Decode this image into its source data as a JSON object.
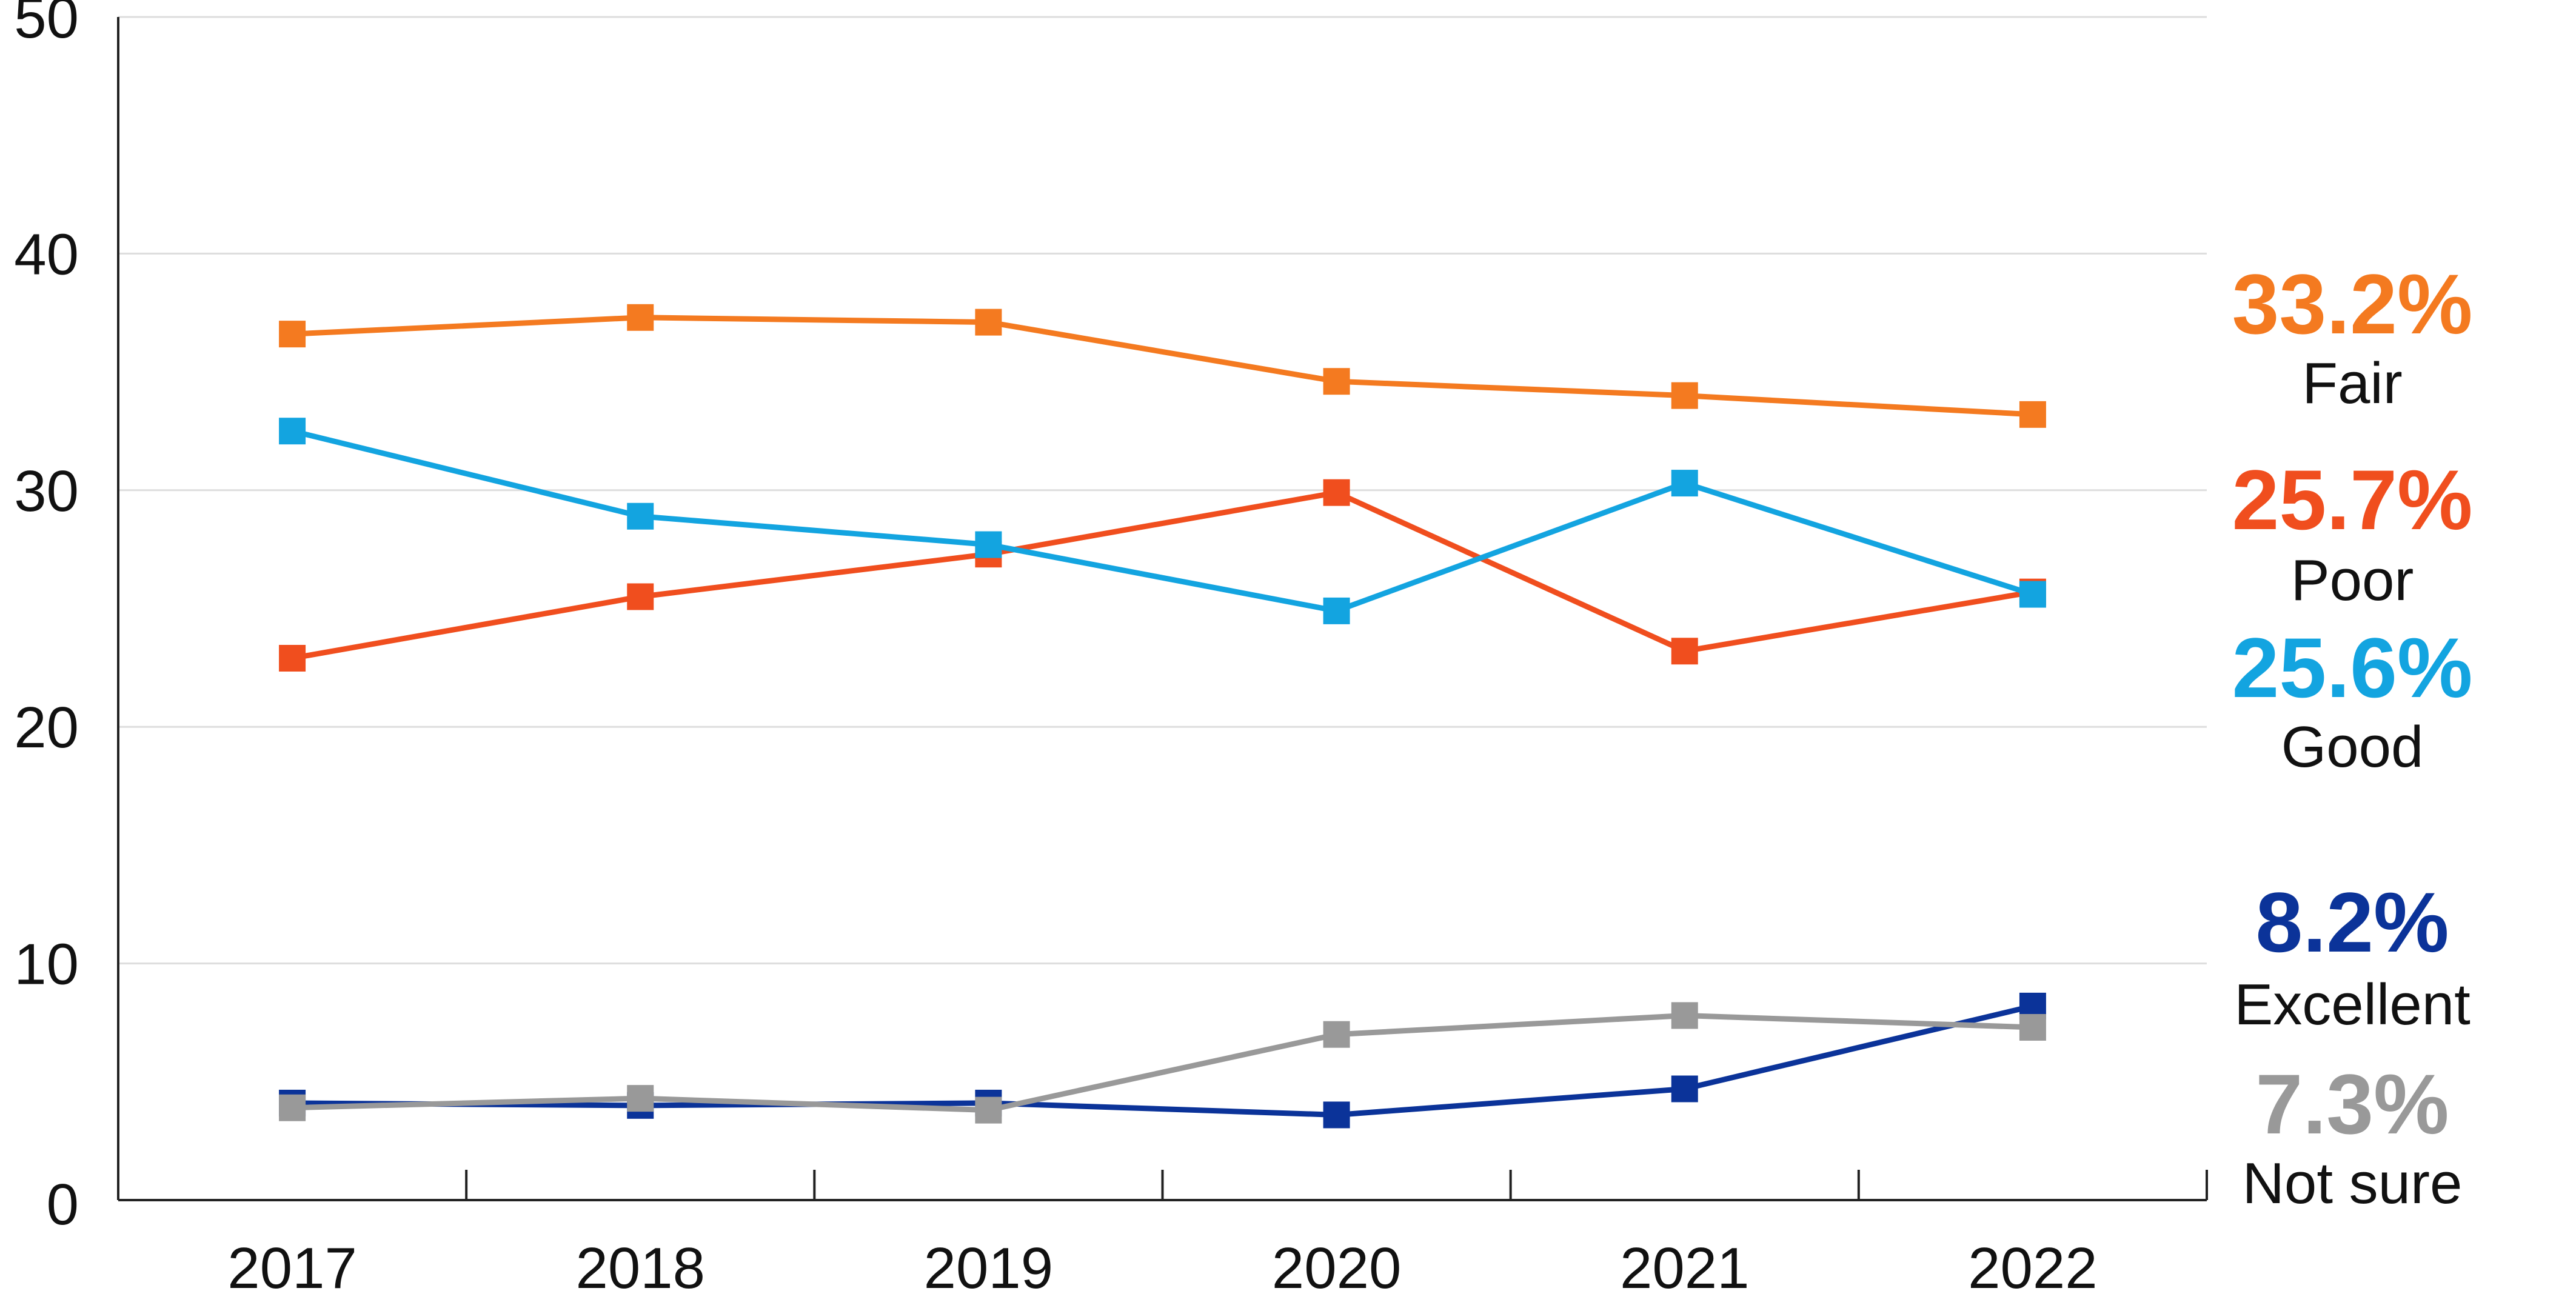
{
  "chart_data": {
    "type": "line",
    "x": [
      "2017",
      "2018",
      "2019",
      "2020",
      "2021",
      "2022"
    ],
    "ylim": [
      0,
      50
    ],
    "yticks": [
      "0",
      "10",
      "20",
      "30",
      "40",
      "50"
    ],
    "grid": true,
    "legend": "end-of-line labels on the right",
    "series": [
      {
        "name": "Fair",
        "color": "#f47a20",
        "values": [
          36.6,
          37.3,
          37.1,
          34.6,
          34.0,
          33.2
        ],
        "end_label": "33.2%"
      },
      {
        "name": "Poor",
        "color": "#f04e1e",
        "values": [
          22.9,
          25.5,
          27.3,
          29.9,
          23.2,
          25.7
        ],
        "end_label": "25.7%"
      },
      {
        "name": "Good",
        "color": "#13a4e0",
        "values": [
          32.5,
          28.9,
          27.7,
          24.9,
          30.3,
          25.6
        ],
        "end_label": "25.6%"
      },
      {
        "name": "Excellent",
        "color": "#0b3399",
        "values": [
          4.1,
          4.0,
          4.1,
          3.6,
          4.7,
          8.2
        ],
        "end_label": "8.2%"
      },
      {
        "name": "Not sure",
        "color": "#999999",
        "values": [
          3.9,
          4.3,
          3.8,
          7.0,
          7.8,
          7.3
        ],
        "end_label": "7.3%"
      }
    ]
  }
}
